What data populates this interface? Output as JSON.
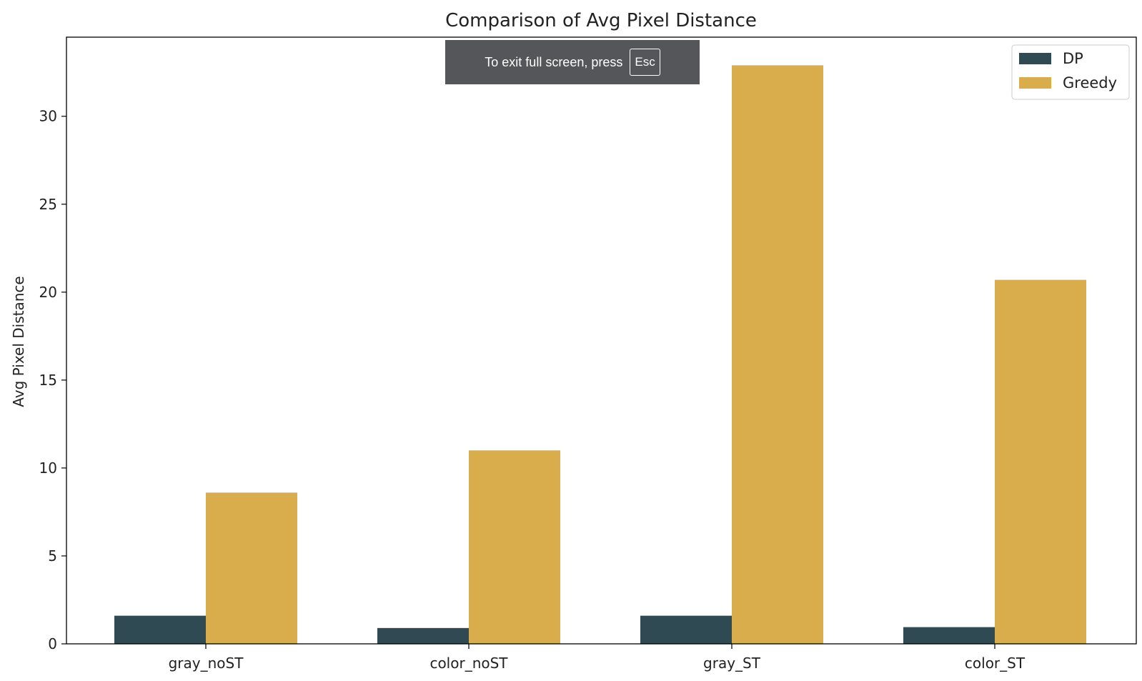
{
  "chart_data": {
    "type": "bar",
    "title": "Comparison of Avg Pixel Distance",
    "xlabel": "",
    "ylabel": "Avg Pixel Distance",
    "categories": [
      "gray_noST",
      "color_noST",
      "gray_ST",
      "color_ST"
    ],
    "series": [
      {
        "name": "DP",
        "values": [
          1.6,
          0.9,
          1.6,
          0.95
        ],
        "color": "#304a53"
      },
      {
        "name": "Greedy",
        "values": [
          8.6,
          11.0,
          32.9,
          20.7
        ],
        "color": "#d9ad4b"
      }
    ],
    "yticks": [
      0,
      5,
      10,
      15,
      20,
      25,
      30
    ],
    "ylim": [
      0,
      34.5
    ],
    "grid": false,
    "legend_position": "top-right"
  },
  "overlay": {
    "fullscreen_message": "To exit full screen, press",
    "fullscreen_key": "Esc"
  }
}
